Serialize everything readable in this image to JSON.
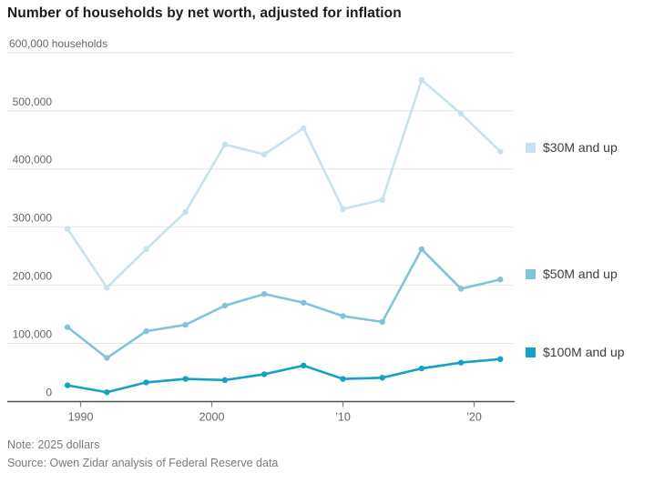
{
  "title": "Number of households by net worth, adjusted for inflation",
  "note": "Note: 2025 dollars",
  "source": "Source: Owen Zidar analysis of Federal Reserve data",
  "legend": [
    {
      "label": "$30M and up",
      "color": "#c6e2ee"
    },
    {
      "label": "$50M and up",
      "color": "#84c3d7"
    },
    {
      "label": "$100M and up",
      "color": "#14a2c4"
    }
  ],
  "colors": {
    "gridline": "#e6e6e6",
    "axis_line": "#4f4f4f",
    "tick_mark": "#7f7f7f",
    "axis_label": "#666666",
    "title_text": "#1b1b1b",
    "note_text": "#7a7a7a"
  },
  "chart_data": {
    "type": "line",
    "title": "Number of households by net worth, adjusted for inflation",
    "xlabel": "",
    "ylabel": "households",
    "units": "households",
    "grid": true,
    "legend_position": "right",
    "ylim": [
      0,
      600000
    ],
    "x": [
      1989,
      1992,
      1995,
      1998,
      2001,
      2004,
      2007,
      2010,
      2013,
      2016,
      2019,
      2022
    ],
    "series": [
      {
        "name": "$30M and up",
        "color": "#c6e2ee",
        "values": [
          297000,
          196000,
          262000,
          326000,
          442000,
          425000,
          470000,
          331000,
          347000,
          553000,
          495000,
          430000
        ]
      },
      {
        "name": "$50M and up",
        "color": "#84c3d7",
        "values": [
          128000,
          75000,
          121000,
          132000,
          165000,
          185000,
          170000,
          147000,
          137000,
          262000,
          194000,
          210000
        ]
      },
      {
        "name": "$100M and up",
        "color": "#14a2c4",
        "values": [
          28000,
          16000,
          33000,
          39000,
          37000,
          47000,
          62000,
          39000,
          41000,
          57000,
          67000,
          73000
        ]
      }
    ],
    "y_ticks": [
      {
        "value": 600000,
        "label": "600,000 households"
      },
      {
        "value": 500000,
        "label": "500,000"
      },
      {
        "value": 400000,
        "label": "400,000"
      },
      {
        "value": 300000,
        "label": "300,000"
      },
      {
        "value": 200000,
        "label": "200,000"
      },
      {
        "value": 100000,
        "label": "100,000"
      },
      {
        "value": 0,
        "label": "0"
      }
    ],
    "x_ticks": [
      {
        "value": 1990,
        "label": "1990"
      },
      {
        "value": 2000,
        "label": "2000"
      },
      {
        "value": 2010,
        "label": "’10"
      },
      {
        "value": 2020,
        "label": "’20"
      }
    ]
  }
}
